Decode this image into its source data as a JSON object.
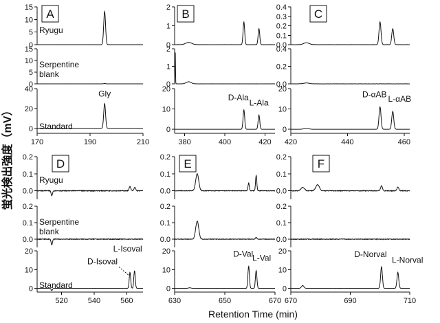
{
  "figure": {
    "y_axis_label": "蛍光検出強度（mV）",
    "x_axis_label": "Retention Time (min)"
  },
  "chart_data": [
    {
      "type": "line",
      "panel": "A",
      "xlim": [
        170,
        210
      ],
      "xticks": [
        170,
        190,
        210
      ],
      "tracks": [
        {
          "label": "Ryugu",
          "ylim": [
            0,
            15
          ],
          "yticks": [
            0,
            5,
            10,
            15
          ],
          "peaks": [
            {
              "x": 195.5,
              "y": 13.2,
              "w": 0.35
            }
          ],
          "noise": 0.03
        },
        {
          "label": "Serpentine\nblank",
          "ylim": [
            0,
            15
          ],
          "yticks": [
            0,
            5,
            10,
            15
          ],
          "peaks": [
            {
              "x": 195.5,
              "y": 0.15,
              "w": 0.35
            }
          ],
          "noise": 0.03
        },
        {
          "label": "Standard",
          "ylim": [
            -5,
            40
          ],
          "yticks": [
            0,
            20,
            40
          ],
          "peaks": [
            {
              "x": 195.5,
              "y": 25,
              "w": 0.35,
              "name": "Gly"
            }
          ],
          "noise": 0.05
        }
      ]
    },
    {
      "type": "line",
      "panel": "B",
      "xlim": [
        375,
        425
      ],
      "xticks": [
        380,
        400,
        420
      ],
      "tracks": [
        {
          "label": "",
          "ylim": [
            0,
            2
          ],
          "yticks": [
            0,
            1,
            2
          ],
          "peaks": [
            {
              "x": 382,
              "y": 0.12,
              "w": 1.5
            },
            {
              "x": 409.5,
              "y": 1.2,
              "w": 0.4
            },
            {
              "x": 417,
              "y": 0.85,
              "w": 0.4
            }
          ],
          "noise": 0.005
        },
        {
          "label": "",
          "ylim": [
            0,
            2
          ],
          "yticks": [
            0,
            1,
            2
          ],
          "peaks": [
            {
              "x": 375.3,
              "y": 2.0,
              "w": 0.12
            },
            {
              "x": 382,
              "y": 0.12,
              "w": 1.2
            }
          ],
          "noise": 0.005
        },
        {
          "label": "",
          "ylim": [
            -2,
            20
          ],
          "yticks": [
            0,
            10,
            20
          ],
          "peaks": [
            {
              "x": 409.5,
              "y": 9.5,
              "w": 0.4,
              "name": "D-Ala"
            },
            {
              "x": 417,
              "y": 7,
              "w": 0.4,
              "name": "L-Ala"
            }
          ],
          "noise": 0.02
        }
      ]
    },
    {
      "type": "line",
      "panel": "C",
      "xlim": [
        420,
        462
      ],
      "xticks": [
        420,
        440,
        460
      ],
      "tracks": [
        {
          "label": "",
          "ylim": [
            0,
            0.4
          ],
          "yticks": [
            0.0,
            0.1,
            0.2,
            0.3,
            0.4
          ],
          "peaks": [
            {
              "x": 425.5,
              "y": 0.02,
              "w": 1.0
            },
            {
              "x": 451.5,
              "y": 0.24,
              "w": 0.35
            },
            {
              "x": 456,
              "y": 0.17,
              "w": 0.35
            }
          ],
          "noise": 0.002
        },
        {
          "label": "",
          "ylim": [
            0,
            0.4
          ],
          "yticks": [
            0.0,
            0.2,
            0.4
          ],
          "peaks": [
            {
              "x": 425.5,
              "y": 0.01,
              "w": 1.0
            }
          ],
          "noise": 0.002
        },
        {
          "label": "",
          "ylim": [
            -2,
            20
          ],
          "yticks": [
            0,
            10,
            20
          ],
          "peaks": [
            {
              "x": 425.5,
              "y": 0.5,
              "w": 0.8
            },
            {
              "x": 451.5,
              "y": 11,
              "w": 0.35,
              "name": "D-αAB"
            },
            {
              "x": 456,
              "y": 8.8,
              "w": 0.35,
              "name": "L-αAB"
            }
          ],
          "noise": 0.02
        }
      ]
    },
    {
      "type": "line",
      "panel": "D",
      "xlim": [
        505,
        570
      ],
      "xticks": [
        520,
        540,
        560
      ],
      "tracks": [
        {
          "label": "Ryugu",
          "ylim": [
            -0.05,
            0.2
          ],
          "yticks": [
            0.0,
            0.1,
            0.2
          ],
          "peaks": [
            {
              "x": 514,
              "y": -0.03,
              "w": 0.4
            },
            {
              "x": 562,
              "y": 0.025,
              "w": 0.5
            },
            {
              "x": 565,
              "y": 0.02,
              "w": 0.5
            }
          ],
          "noise": 0.004
        },
        {
          "label": "Serpentine\nblank",
          "ylim": [
            -0.05,
            0.2
          ],
          "yticks": [
            0.0,
            0.1,
            0.2
          ],
          "peaks": [
            {
              "x": 514,
              "y": -0.035,
              "w": 0.4
            }
          ],
          "noise": 0.004
        },
        {
          "label": "Standard",
          "ylim": [
            -2,
            20
          ],
          "yticks": [
            0,
            10,
            20
          ],
          "peaks": [
            {
              "x": 514,
              "y": -1.2,
              "w": 0.4
            },
            {
              "x": 562,
              "y": 8.5,
              "w": 0.45,
              "name": "D-Isoval"
            },
            {
              "x": 564.8,
              "y": 9.3,
              "w": 0.45,
              "name": "L-Isoval"
            }
          ],
          "noise": 0.02
        }
      ]
    },
    {
      "type": "line",
      "panel": "E",
      "xlim": [
        630,
        670
      ],
      "xticks": [
        630,
        650,
        670
      ],
      "tracks": [
        {
          "label": "",
          "ylim": [
            -0.05,
            0.2
          ],
          "yticks": [
            0.0,
            0.1,
            0.2
          ],
          "peaks": [
            {
              "x": 639,
              "y": 0.1,
              "w": 0.6
            },
            {
              "x": 659.5,
              "y": 0.045,
              "w": 0.25
            },
            {
              "x": 662.5,
              "y": 0.09,
              "w": 0.25
            }
          ],
          "noise": 0.003
        },
        {
          "label": "",
          "ylim": [
            -0.05,
            0.2
          ],
          "yticks": [
            0.0,
            0.1,
            0.2
          ],
          "peaks": [
            {
              "x": 639,
              "y": 0.11,
              "w": 0.6
            },
            {
              "x": 662.5,
              "y": 0.01,
              "w": 0.3
            }
          ],
          "noise": 0.003
        },
        {
          "label": "",
          "ylim": [
            -2,
            20
          ],
          "yticks": [
            0,
            10,
            20
          ],
          "peaks": [
            {
              "x": 636,
              "y": 0.3,
              "w": 0.5
            },
            {
              "x": 659.5,
              "y": 11.8,
              "w": 0.3,
              "name": "D-Val"
            },
            {
              "x": 662.5,
              "y": 9.5,
              "w": 0.3,
              "name": "L-Val"
            }
          ],
          "noise": 0.02
        }
      ]
    },
    {
      "type": "line",
      "panel": "F",
      "xlim": [
        670,
        710
      ],
      "xticks": [
        670,
        690,
        710
      ],
      "tracks": [
        {
          "label": "",
          "ylim": [
            -0.05,
            0.2
          ],
          "yticks": [
            0.0,
            0.1,
            0.2
          ],
          "peaks": [
            {
              "x": 674,
              "y": 0.02,
              "w": 0.6
            },
            {
              "x": 679,
              "y": 0.035,
              "w": 0.6
            },
            {
              "x": 700.5,
              "y": 0.03,
              "w": 0.3
            },
            {
              "x": 706,
              "y": 0.022,
              "w": 0.3
            }
          ],
          "noise": 0.004
        },
        {
          "label": "",
          "ylim": [
            -0.05,
            0.2
          ],
          "yticks": [
            0.0,
            0.1,
            0.2
          ],
          "peaks": [],
          "noise": 0.004
        },
        {
          "label": "",
          "ylim": [
            -2,
            20
          ],
          "yticks": [
            0,
            10,
            20
          ],
          "peaks": [
            {
              "x": 674,
              "y": 1.5,
              "w": 0.4
            },
            {
              "x": 700.5,
              "y": 11.5,
              "w": 0.3,
              "name": "D-Norval"
            },
            {
              "x": 706,
              "y": 8.5,
              "w": 0.3,
              "name": "L-Norval"
            }
          ],
          "noise": 0.02
        }
      ]
    }
  ]
}
